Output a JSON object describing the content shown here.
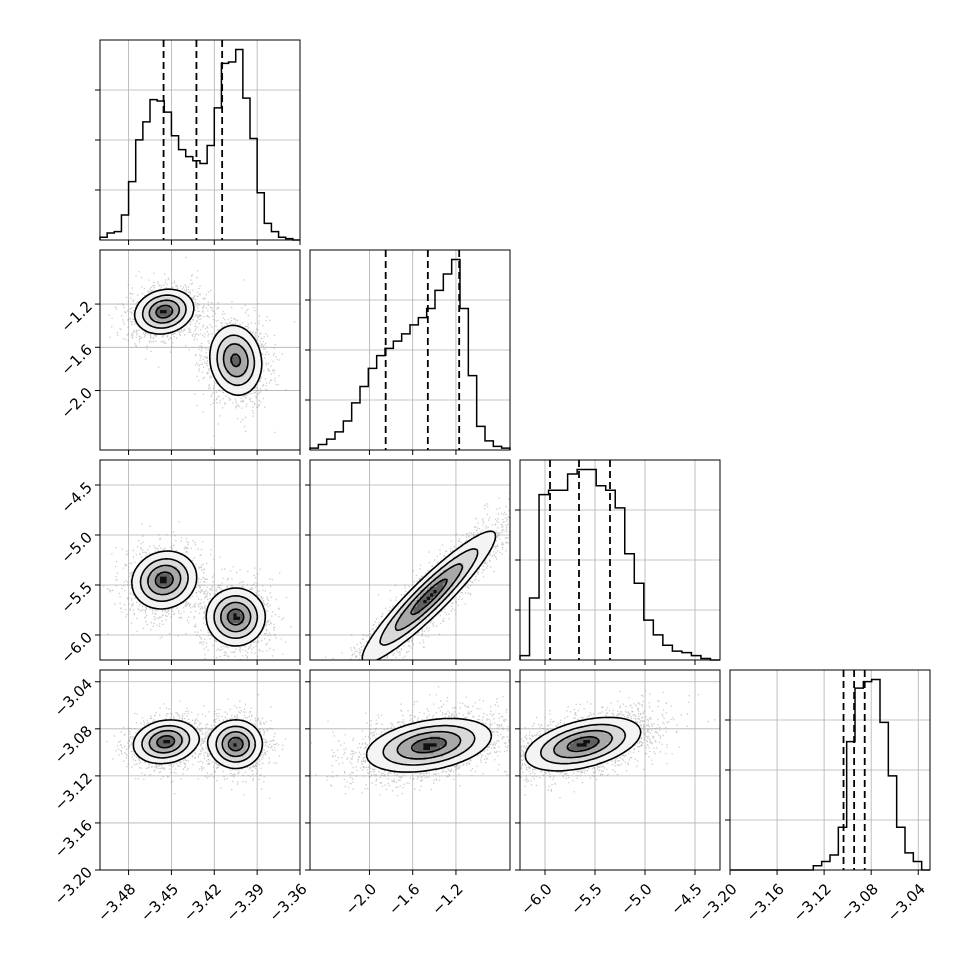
{
  "chart_data": {
    "type": "corner",
    "parameters": [
      {
        "range": [
          -3.5,
          -3.36
        ],
        "ticks": [
          -3.48,
          -3.45,
          -3.42,
          -3.39,
          -3.36
        ],
        "tick_labels": [
          "−3.48",
          "−3.45",
          "−3.42",
          "−3.39",
          "−3.36"
        ],
        "quantiles": [
          -3.4555,
          -3.4325,
          -3.4145
        ],
        "hist": [
          0.2,
          0.5,
          0.6,
          1.8,
          4.2,
          7.2,
          8.5,
          10.1,
          10.0,
          9.2,
          7.5,
          6.5,
          6.0,
          5.7,
          5.5,
          6.8,
          9.5,
          12.7,
          12.8,
          13.7,
          10.2,
          7.3,
          3.4,
          1.2,
          0.6,
          0.2,
          0.1,
          0.0
        ]
      },
      {
        "range": [
          -2.55,
          -0.7
        ],
        "ticks": [
          -2.0,
          -1.6,
          -1.2
        ],
        "tick_labels": [
          "−2.0",
          "−1.6",
          "−1.2"
        ],
        "quantiles": [
          -1.85,
          -1.46,
          -1.17
        ],
        "hist": [
          0.1,
          0.3,
          0.6,
          1.0,
          1.6,
          2.6,
          3.5,
          4.5,
          5.2,
          5.6,
          6.0,
          6.4,
          6.9,
          7.3,
          7.8,
          8.8,
          9.7,
          10.5,
          7.8,
          4.1,
          1.3,
          0.5,
          0.2,
          0.1
        ]
      },
      {
        "range": [
          -6.25,
          -4.25
        ],
        "ticks": [
          -6.0,
          -5.5,
          -5.0,
          -4.5
        ],
        "tick_labels": [
          "−6.0",
          "−5.5",
          "−5.0",
          "−4.5"
        ],
        "quantiles": [
          -5.95,
          -5.66,
          -5.35
        ],
        "hist": [
          0.3,
          4.2,
          11.2,
          11.5,
          11.5,
          12.6,
          12.9,
          12.9,
          11.8,
          11.5,
          10.3,
          7.2,
          5.2,
          2.7,
          1.7,
          1.0,
          0.6,
          0.5,
          0.3,
          0.1,
          0.0
        ]
      },
      {
        "range": [
          -3.2,
          -3.03
        ],
        "ticks": [
          -3.2,
          -3.16,
          -3.12,
          -3.08,
          -3.04
        ],
        "tick_labels": [
          "−3.20",
          "−3.16",
          "−3.12",
          "−3.08",
          "−3.04"
        ],
        "quantiles": [
          -3.1035,
          -3.0945,
          -3.0855
        ],
        "hist": [
          0.0,
          0.0,
          0.0,
          0.0,
          0.0,
          0.0,
          0.0,
          0.0,
          0.0,
          0.0,
          0.2,
          0.4,
          0.7,
          2.0,
          6.0,
          8.5,
          8.8,
          8.9,
          6.9,
          4.4,
          2.0,
          0.8,
          0.4,
          0.0
        ]
      }
    ],
    "pairs": [
      {
        "row": 1,
        "col": 0,
        "modes": [
          {
            "cx": -3.455,
            "cy": -1.27,
            "sx": 0.01,
            "sy": 0.1,
            "rho": 0.15,
            "w": 1.0
          },
          {
            "cx": -3.405,
            "cy": -1.72,
            "sx": 0.009,
            "sy": 0.16,
            "rho": -0.1,
            "w": 0.9
          }
        ]
      },
      {
        "row": 2,
        "col": 0,
        "modes": [
          {
            "cx": -3.455,
            "cy": -5.45,
            "sx": 0.011,
            "sy": 0.14,
            "rho": 0.1,
            "w": 1.0
          },
          {
            "cx": -3.405,
            "cy": -5.82,
            "sx": 0.01,
            "sy": 0.14,
            "rho": 0.0,
            "w": 1.0
          }
        ]
      },
      {
        "row": 2,
        "col": 1,
        "modes": [
          {
            "cx": -1.45,
            "cy": -5.62,
            "sx": 0.3,
            "sy": 0.32,
            "rho": 0.93,
            "w": 1.0
          }
        ]
      },
      {
        "row": 3,
        "col": 0,
        "modes": [
          {
            "cx": -3.454,
            "cy": -3.091,
            "sx": 0.011,
            "sy": 0.009,
            "rho": 0.15,
            "w": 1.0
          },
          {
            "cx": -3.405,
            "cy": -3.093,
            "sx": 0.009,
            "sy": 0.01,
            "rho": 0.0,
            "w": 1.0
          }
        ]
      },
      {
        "row": 3,
        "col": 1,
        "modes": [
          {
            "cx": -1.45,
            "cy": -3.094,
            "sx": 0.28,
            "sy": 0.011,
            "rho": 0.35,
            "w": 1.0
          }
        ]
      },
      {
        "row": 3,
        "col": 2,
        "modes": [
          {
            "cx": -5.62,
            "cy": -3.093,
            "sx": 0.28,
            "sy": 0.011,
            "rho": 0.45,
            "w": 1.0
          }
        ]
      }
    ],
    "contour_levels": [
      0.12,
      0.32,
      0.58,
      0.85
    ],
    "grid": true,
    "line_style": "dashed quantile lines"
  }
}
